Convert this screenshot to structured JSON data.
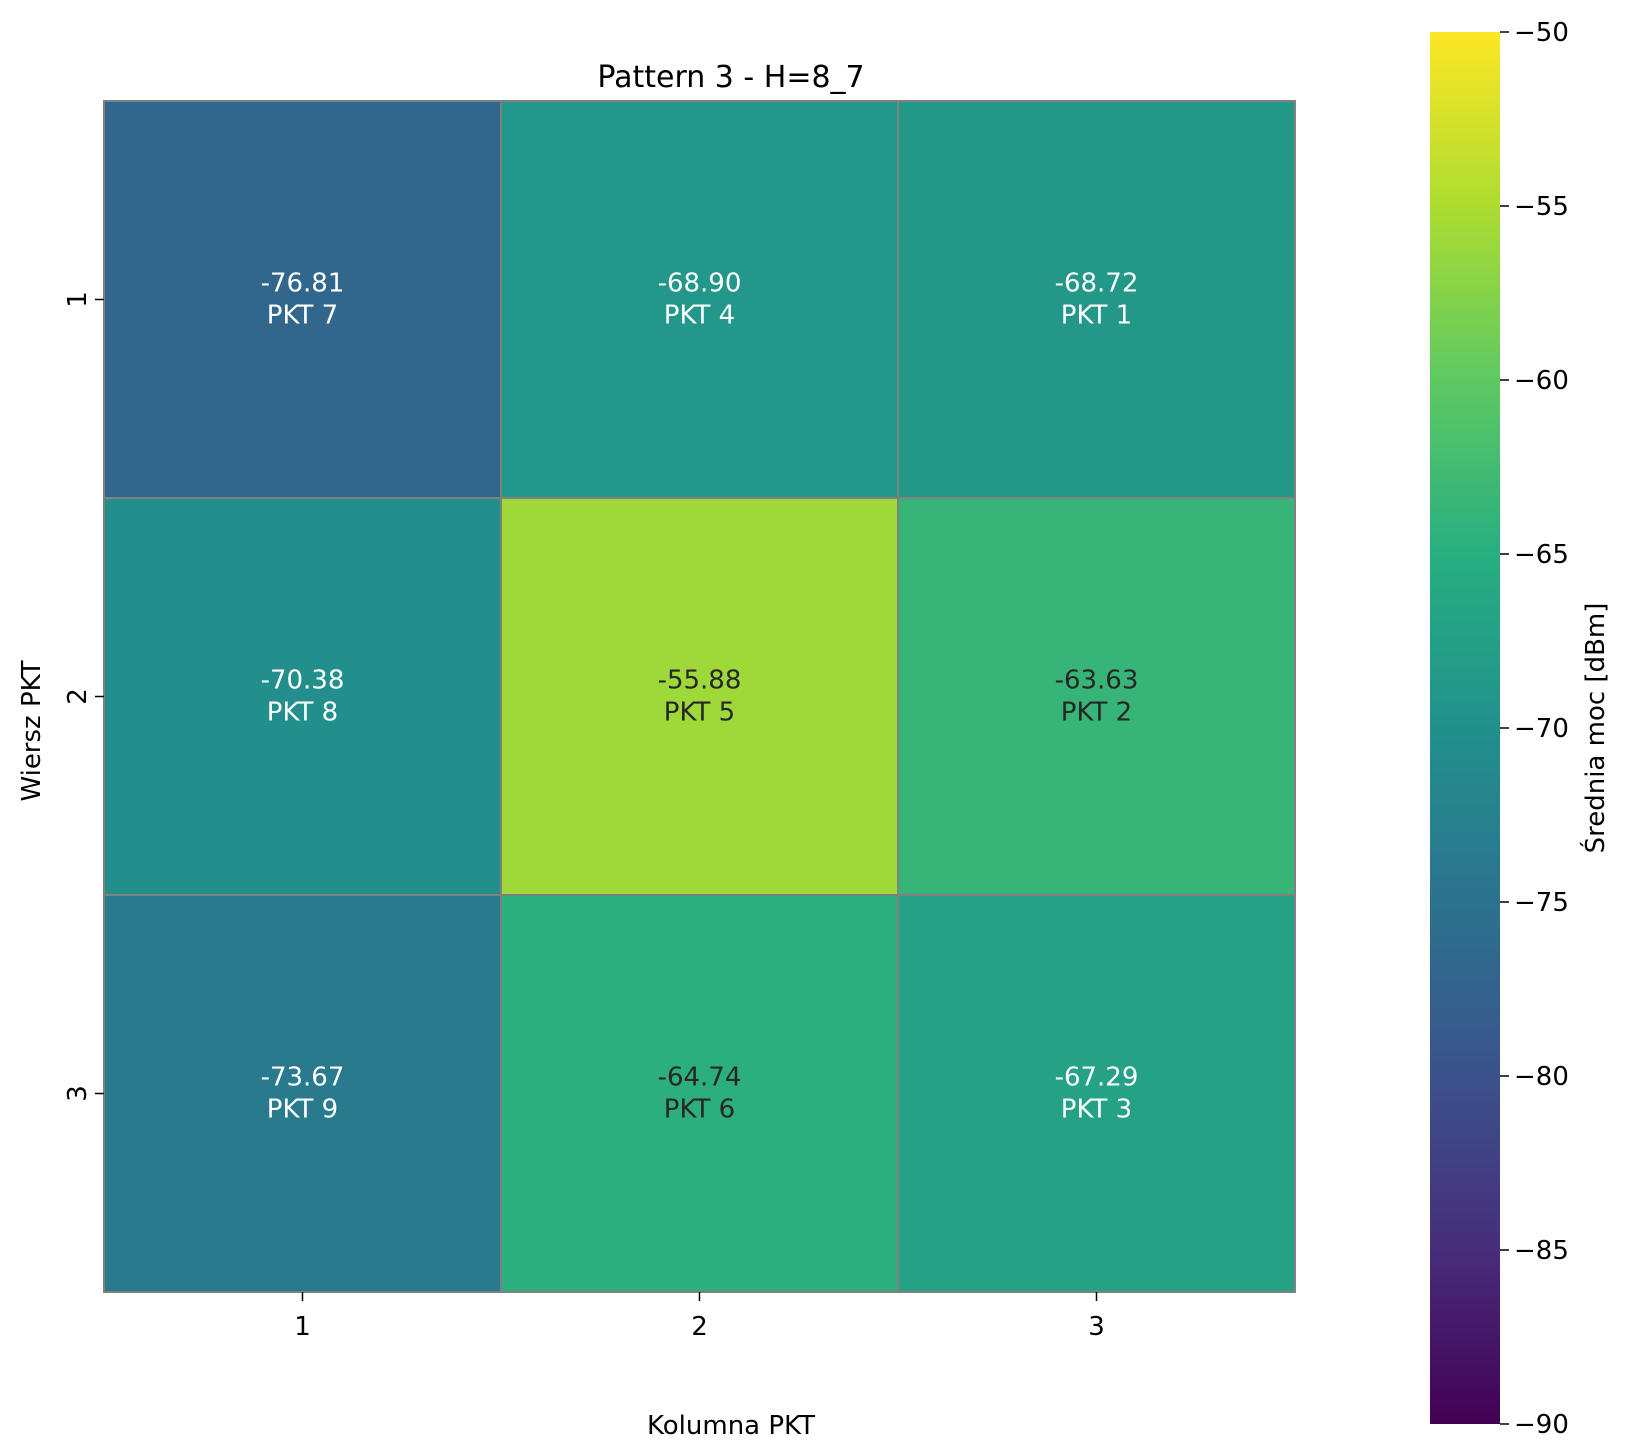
{
  "chart_data": {
    "type": "heatmap",
    "title": "Pattern 3 - H=8_7",
    "xlabel": "Kolumna PKT",
    "ylabel": "Wiersz PKT",
    "x_categories": [
      "1",
      "2",
      "3"
    ],
    "y_categories": [
      "1",
      "2",
      "3"
    ],
    "values": [
      [
        -76.81,
        -68.9,
        -68.72
      ],
      [
        -70.38,
        -55.88,
        -63.63
      ],
      [
        -73.67,
        -64.74,
        -67.29
      ]
    ],
    "value_labels": [
      [
        "-76.81",
        "-68.90",
        "-68.72"
      ],
      [
        "-70.38",
        "-55.88",
        "-63.63"
      ],
      [
        "-73.67",
        "-64.74",
        "-67.29"
      ]
    ],
    "cell_labels": [
      [
        "PKT 7",
        "PKT 4",
        "PKT 1"
      ],
      [
        "PKT 8",
        "PKT 5",
        "PKT 2"
      ],
      [
        "PKT 9",
        "PKT 6",
        "PKT 3"
      ]
    ],
    "colorbar": {
      "label": "Średnia moc [dBm]",
      "range": [
        -90,
        -50
      ],
      "ticks": [
        -90,
        -85,
        -80,
        -75,
        -70,
        -65,
        -60,
        -55,
        -50
      ],
      "tick_labels": [
        "−90",
        "−85",
        "−80",
        "−75",
        "−70",
        "−65",
        "−60",
        "−55",
        "−50"
      ],
      "colormap": "viridis"
    },
    "grid_line_color": "#808080"
  }
}
